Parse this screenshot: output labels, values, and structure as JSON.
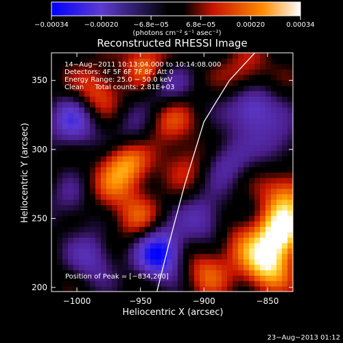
{
  "chart_data": {
    "type": "heatmap",
    "title": "Reconstructed RHESSI Image",
    "xlabel": "Heliocentric X (arcsec)",
    "ylabel": "Heliocentric Y (arcsec)",
    "xlim": [
      -1020,
      -830
    ],
    "ylim": [
      197,
      370
    ],
    "x_ticks": [
      -1000,
      -950,
      -900,
      -850
    ],
    "x_tick_labels": [
      "−1000",
      "−950",
      "−900",
      "−850"
    ],
    "y_ticks": [
      200,
      250,
      300,
      350
    ],
    "y_tick_labels": [
      "200",
      "250",
      "300",
      "350"
    ],
    "colorbar": {
      "range": [
        -0.00034,
        0.00034
      ],
      "tick_labels": [
        "−0.00034",
        "−0.00020",
        "−6.8e−05",
        "6.8e−05",
        "0.00020",
        "0.00034"
      ],
      "units_label": "(photons cm⁻² s⁻¹ asec⁻²)",
      "colors": [
        "#0000ff",
        "#5e3bd0",
        "#000000",
        "#c81400",
        "#ff8c00",
        "#ffffff"
      ]
    },
    "info_lines": [
      "14−Aug−2011 10:13:04.000 to 10:14:08.000",
      "Detectors: 4F 5F 6F 7F 8F, Att 0",
      "Energy Range: 25.0 − 50.0 keV",
      "Clean     Total counts: 2.81E+03"
    ],
    "peak_label": "Position of Peak = [−834,260]",
    "peak_position": [
      -834,
      260
    ],
    "intensity_blobs": [
      {
        "x": -840,
        "y": 240,
        "value": 0.00034
      },
      {
        "x": -850,
        "y": 215,
        "value": 0.00028
      },
      {
        "x": -835,
        "y": 268,
        "value": 0.0002
      },
      {
        "x": -870,
        "y": 232,
        "value": 0.00012
      },
      {
        "x": -960,
        "y": 290,
        "value": 0.00024
      },
      {
        "x": -952,
        "y": 250,
        "value": 0.00014
      },
      {
        "x": -985,
        "y": 342,
        "value": 0.00016
      },
      {
        "x": -945,
        "y": 362,
        "value": 0.00018
      },
      {
        "x": -928,
        "y": 322,
        "value": 0.00016
      },
      {
        "x": -975,
        "y": 270,
        "value": 0.0001
      },
      {
        "x": -898,
        "y": 212,
        "value": 0.00016
      },
      {
        "x": -866,
        "y": 355,
        "value": 0.00014
      },
      {
        "x": -913,
        "y": 290,
        "value": 0.0001
      },
      {
        "x": -935,
        "y": 225,
        "value": -0.00034
      },
      {
        "x": -1003,
        "y": 320,
        "value": -0.00022
      },
      {
        "x": -862,
        "y": 330,
        "value": -0.00024
      },
      {
        "x": -930,
        "y": 345,
        "value": -0.00016
      },
      {
        "x": -900,
        "y": 250,
        "value": -0.00016
      },
      {
        "x": -988,
        "y": 222,
        "value": -0.00016
      },
      {
        "x": -955,
        "y": 312,
        "value": -0.00012
      },
      {
        "x": -882,
        "y": 292,
        "value": -0.00014
      },
      {
        "x": -840,
        "y": 305,
        "value": -0.00012
      },
      {
        "x": -1005,
        "y": 262,
        "value": -0.0001
      }
    ],
    "limb_curve": [
      [
        -937,
        197
      ],
      [
        -928,
        230
      ],
      [
        -915,
        275
      ],
      [
        -900,
        320
      ],
      [
        -880,
        350
      ],
      [
        -860,
        370
      ]
    ],
    "grid": false,
    "legend": "none"
  },
  "footer": {
    "timestamp": "23−Aug−2013 01:12"
  }
}
